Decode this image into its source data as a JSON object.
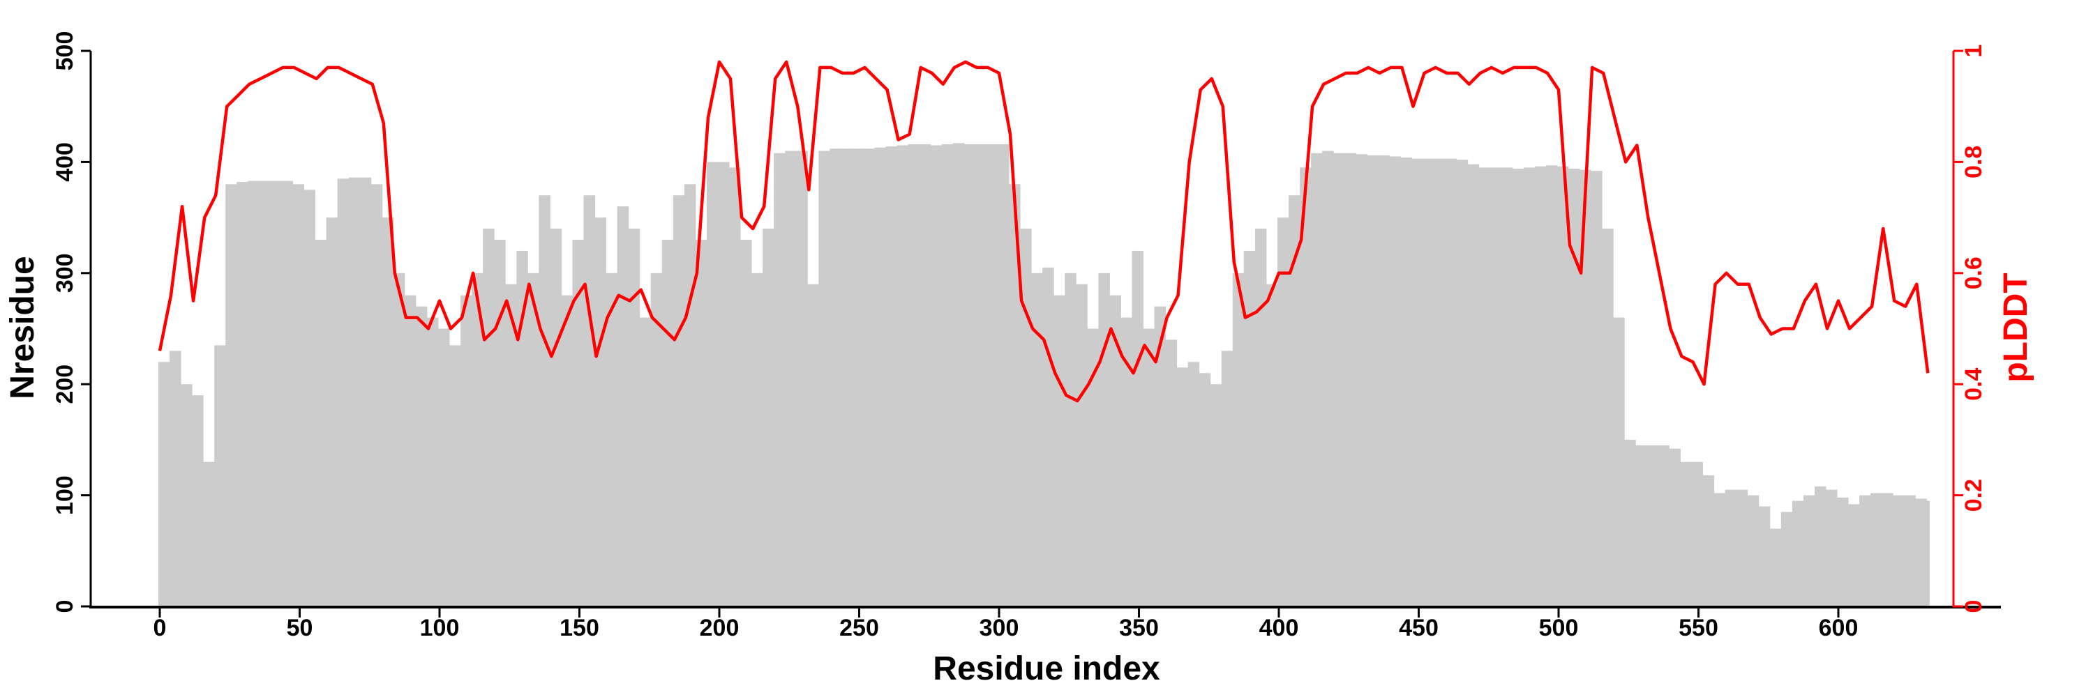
{
  "chart_data": {
    "type": "bar+line",
    "xlabel": "Residue index",
    "ylabel": "Nresidue",
    "y2label": "pLDDT",
    "xlim": [
      -25,
      655
    ],
    "ylim": [
      0,
      500
    ],
    "y2lim": [
      0,
      1
    ],
    "xticks": [
      "0",
      "50",
      "100",
      "150",
      "200",
      "250",
      "300",
      "350",
      "400",
      "450",
      "500",
      "550",
      "600"
    ],
    "yticks": [
      "0",
      "100",
      "200",
      "300",
      "400",
      "500"
    ],
    "y2ticks": [
      "0",
      "0.2",
      "0.4",
      "0.6",
      "0.8",
      "1"
    ],
    "grid": false,
    "x_step": 4,
    "colors": {
      "bars": "#cccccc",
      "line": "#ff0000",
      "axis": "#000000",
      "axis2": "#ff0000"
    },
    "series": [
      {
        "name": "Nresidue",
        "type": "bar",
        "axis": "left",
        "values": [
          220,
          230,
          200,
          190,
          130,
          235,
          380,
          382,
          383,
          383,
          383,
          383,
          380,
          375,
          330,
          350,
          385,
          386,
          386,
          380,
          350,
          300,
          280,
          270,
          260,
          250,
          235,
          280,
          300,
          340,
          330,
          290,
          320,
          300,
          370,
          340,
          280,
          330,
          370,
          350,
          300,
          360,
          340,
          260,
          300,
          330,
          370,
          380,
          330,
          400,
          400,
          395,
          330,
          300,
          340,
          408,
          410,
          410,
          290,
          410,
          412,
          412,
          412,
          412,
          413,
          414,
          415,
          416,
          416,
          415,
          416,
          417,
          416,
          416,
          416,
          416,
          380,
          340,
          300,
          305,
          280,
          300,
          290,
          250,
          300,
          280,
          260,
          320,
          250,
          270,
          240,
          215,
          220,
          210,
          200,
          230,
          300,
          320,
          340,
          290,
          350,
          370,
          395,
          408,
          410,
          408,
          408,
          407,
          406,
          406,
          405,
          404,
          403,
          403,
          403,
          403,
          402,
          398,
          395,
          395,
          395,
          394,
          395,
          396,
          397,
          396,
          394,
          393,
          392,
          340,
          260,
          150,
          145,
          145,
          145,
          142,
          130,
          130,
          118,
          102,
          105,
          105,
          100,
          90,
          70,
          85,
          95,
          100,
          108,
          105,
          98,
          92,
          100,
          102,
          102,
          100,
          100,
          97,
          95
        ]
      },
      {
        "name": "pLDDT",
        "type": "line",
        "axis": "right",
        "values": [
          0.46,
          0.56,
          0.72,
          0.55,
          0.7,
          0.74,
          0.9,
          0.92,
          0.94,
          0.95,
          0.96,
          0.97,
          0.97,
          0.96,
          0.95,
          0.97,
          0.97,
          0.96,
          0.95,
          0.94,
          0.87,
          0.6,
          0.52,
          0.52,
          0.5,
          0.55,
          0.5,
          0.52,
          0.6,
          0.48,
          0.5,
          0.55,
          0.48,
          0.58,
          0.5,
          0.45,
          0.5,
          0.55,
          0.58,
          0.45,
          0.52,
          0.56,
          0.55,
          0.57,
          0.52,
          0.5,
          0.48,
          0.52,
          0.6,
          0.88,
          0.98,
          0.95,
          0.7,
          0.68,
          0.72,
          0.95,
          0.98,
          0.9,
          0.75,
          0.97,
          0.97,
          0.96,
          0.96,
          0.97,
          0.95,
          0.93,
          0.84,
          0.85,
          0.97,
          0.96,
          0.94,
          0.97,
          0.98,
          0.97,
          0.97,
          0.96,
          0.85,
          0.55,
          0.5,
          0.48,
          0.42,
          0.38,
          0.37,
          0.4,
          0.44,
          0.5,
          0.45,
          0.42,
          0.47,
          0.44,
          0.52,
          0.56,
          0.8,
          0.93,
          0.95,
          0.9,
          0.62,
          0.52,
          0.53,
          0.55,
          0.6,
          0.6,
          0.66,
          0.9,
          0.94,
          0.95,
          0.96,
          0.96,
          0.97,
          0.96,
          0.97,
          0.97,
          0.9,
          0.96,
          0.97,
          0.96,
          0.96,
          0.94,
          0.96,
          0.97,
          0.96,
          0.97,
          0.97,
          0.97,
          0.96,
          0.93,
          0.65,
          0.6,
          0.97,
          0.96,
          0.88,
          0.8,
          0.83,
          0.7,
          0.6,
          0.5,
          0.45,
          0.44,
          0.4,
          0.58,
          0.6,
          0.58,
          0.58,
          0.52,
          0.49,
          0.5,
          0.5,
          0.55,
          0.58,
          0.5,
          0.55,
          0.5,
          0.52,
          0.54,
          0.68,
          0.55,
          0.54,
          0.58,
          0.42
        ]
      }
    ]
  }
}
